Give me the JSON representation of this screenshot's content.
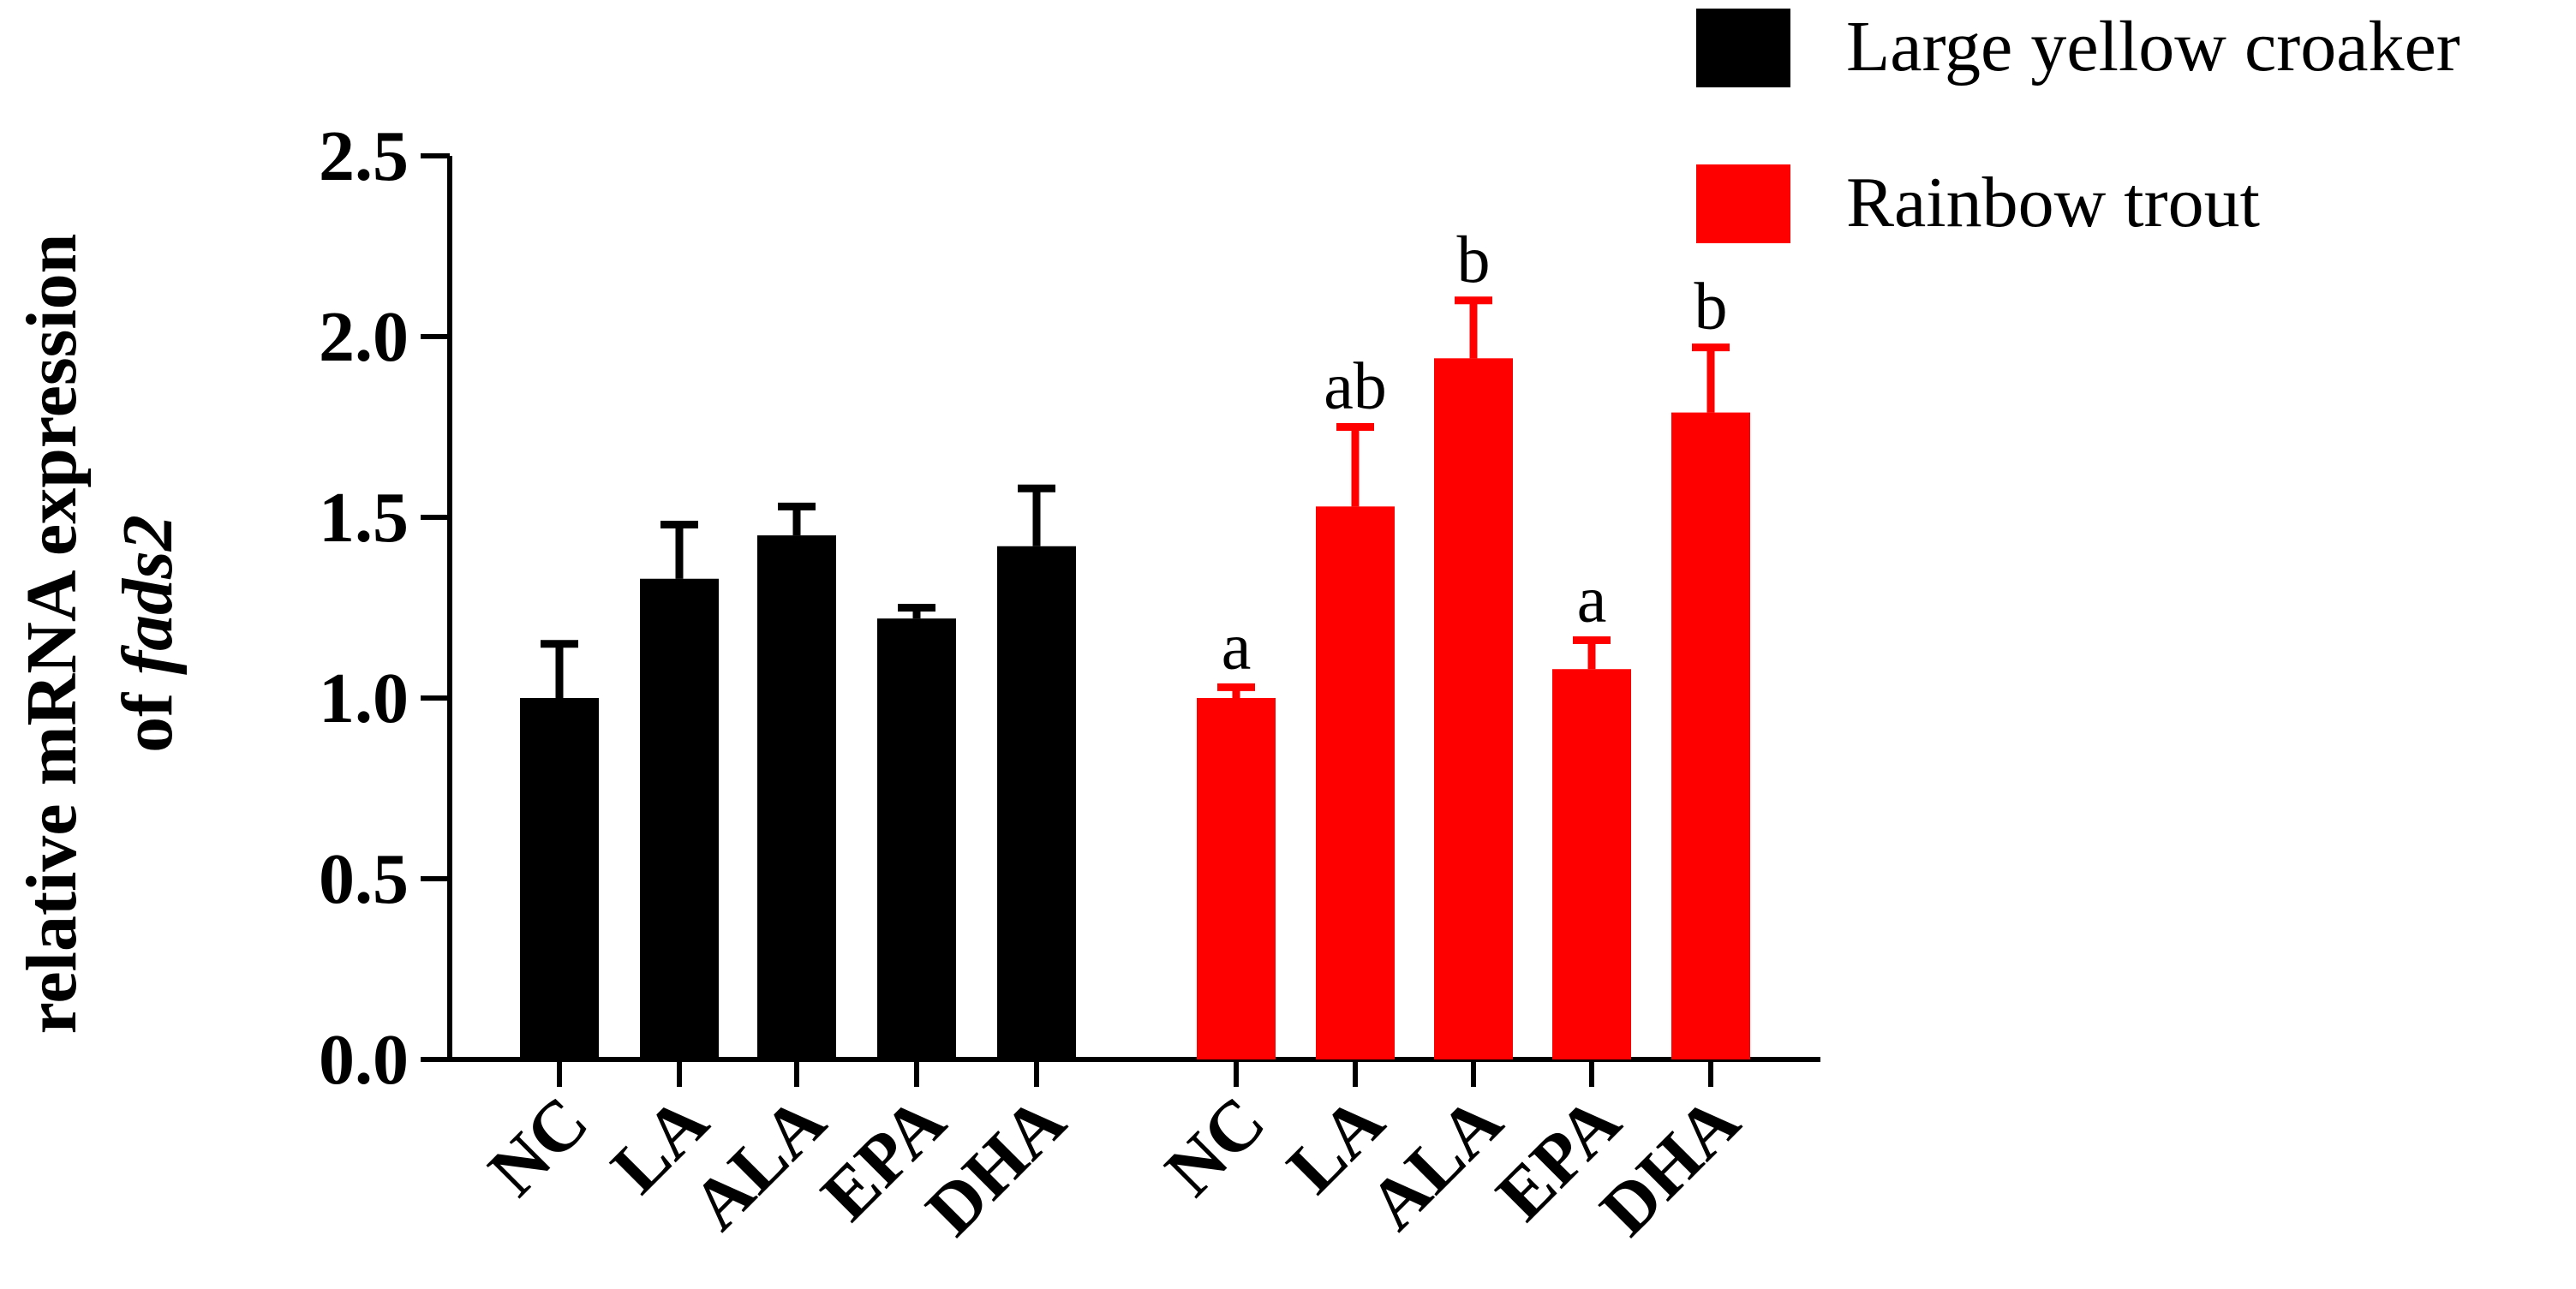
{
  "chart_data": {
    "type": "bar",
    "title": "",
    "xlabel": "",
    "ylabel_line1": "relative mRNA expression",
    "ylabel_line2_prefix": "of ",
    "ylabel_line2_gene": "fads2",
    "ylim": [
      0,
      2.5
    ],
    "yticks": [
      "0.0",
      "0.5",
      "1.0",
      "1.5",
      "2.0",
      "2.5"
    ],
    "ytick_values": [
      0,
      0.5,
      1.0,
      1.5,
      2.0,
      2.5
    ],
    "grid": false,
    "legend_position": "top-right",
    "categories": [
      "NC",
      "LA",
      "ALA",
      "EPA",
      "DHA"
    ],
    "series": [
      {
        "name": "Large yellow croaker",
        "color": "#000000",
        "values": [
          1.0,
          1.33,
          1.45,
          1.22,
          1.42
        ],
        "errors": [
          0.15,
          0.15,
          0.08,
          0.03,
          0.16
        ],
        "labels": [
          "",
          "",
          "",
          "",
          ""
        ]
      },
      {
        "name": "Rainbow trout",
        "color": "#ff0000",
        "values": [
          1.0,
          1.53,
          1.94,
          1.08,
          1.79
        ],
        "errors": [
          0.03,
          0.22,
          0.16,
          0.08,
          0.18
        ],
        "labels": [
          "a",
          "ab",
          "b",
          "a",
          "b"
        ]
      }
    ]
  }
}
